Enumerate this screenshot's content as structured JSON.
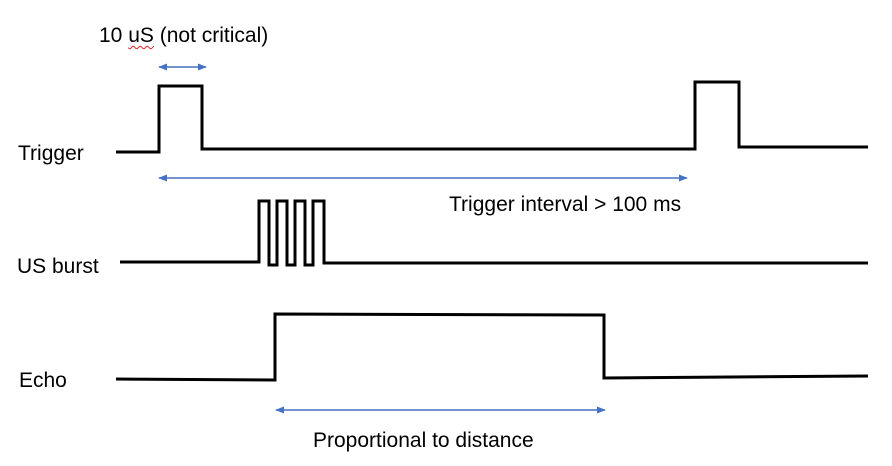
{
  "signals": {
    "trigger": "Trigger",
    "us_burst": "US burst",
    "echo": "Echo"
  },
  "annotations": {
    "pulse_width_value": "10",
    "pulse_width_unit": "uS",
    "pulse_width_note": "(not critical)",
    "trigger_interval": "Trigger interval > 100 ms",
    "echo_duration": "Proportional to distance"
  },
  "colors": {
    "waveform": "#000000",
    "dimension_arrow": "#4472c4",
    "spellcheck_underline": "#e02020"
  }
}
